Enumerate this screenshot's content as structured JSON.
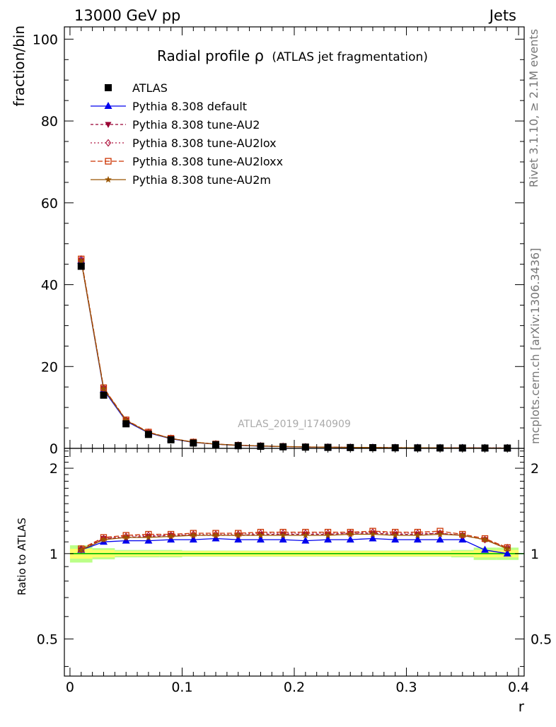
{
  "header": {
    "left": "13000 GeV pp",
    "right": "Jets"
  },
  "side_labels": {
    "rivet": "Rivet 3.1.10, ≥ 2.1M events",
    "source": "mcplots.cern.ch [arXiv:1306.3436]"
  },
  "watermark": "ATLAS_2019_I1740909",
  "colors": {
    "data": "#000000",
    "default": "#0000ee",
    "au2": "#990033",
    "au2lox": "#b01840",
    "au2loxx": "#cc3300",
    "au2m": "#995500",
    "band_inner": "#ffff66",
    "band_outer": "#bbff88",
    "ref_line": "#00bb00"
  },
  "chart_data": {
    "type": "line",
    "title": "Radial profile",
    "title_symbol": "ρ",
    "title_suffix": "(ATLAS jet fragmentation)",
    "xlabel": "r",
    "ylabel_main": "fraction/bin",
    "ylabel_ratio": "Ratio to ATLAS",
    "xlim": [
      -0.005,
      0.405
    ],
    "ylim_main": [
      0,
      103
    ],
    "ylim_ratio_log": [
      0.37,
      2.35
    ],
    "x_ticks": [
      0,
      0.1,
      0.2,
      0.3,
      0.4
    ],
    "x_tick_labels": [
      "0",
      "0.1",
      "0.2",
      "0.3",
      "0.4"
    ],
    "y_ticks_main": [
      0,
      20,
      40,
      60,
      80,
      100
    ],
    "y_tick_labels_main": [
      "0",
      "20",
      "40",
      "60",
      "80",
      "100"
    ],
    "y_ticks_ratio": [
      0.5,
      1,
      2
    ],
    "y_tick_labels_ratio": [
      "0.5",
      "1",
      "2"
    ],
    "x": [
      0.01,
      0.03,
      0.05,
      0.07,
      0.09,
      0.11,
      0.13,
      0.15,
      0.17,
      0.19,
      0.21,
      0.23,
      0.25,
      0.27,
      0.29,
      0.31,
      0.33,
      0.35,
      0.37,
      0.39
    ],
    "data": {
      "name": "ATLAS",
      "values": [
        44.5,
        13.0,
        6.0,
        3.4,
        2.1,
        1.3,
        0.9,
        0.65,
        0.5,
        0.38,
        0.3,
        0.24,
        0.2,
        0.17,
        0.14,
        0.12,
        0.1,
        0.09,
        0.08,
        0.07
      ],
      "band_inner": [
        0.04,
        0.03,
        0.02,
        0.02,
        0.02,
        0.02,
        0.02,
        0.02,
        0.02,
        0.02,
        0.02,
        0.02,
        0.02,
        0.02,
        0.02,
        0.02,
        0.02,
        0.02,
        0.03,
        0.03
      ],
      "band_outer": [
        0.07,
        0.045,
        0.03,
        0.03,
        0.03,
        0.025,
        0.025,
        0.025,
        0.025,
        0.025,
        0.025,
        0.025,
        0.025,
        0.025,
        0.025,
        0.025,
        0.025,
        0.03,
        0.05,
        0.05
      ]
    },
    "series": [
      {
        "name": "Pythia 8.308 default",
        "key": "default",
        "marker": "triangle-up",
        "dash": "",
        "ratio": [
          1.03,
          1.1,
          1.11,
          1.11,
          1.12,
          1.12,
          1.13,
          1.12,
          1.12,
          1.12,
          1.11,
          1.12,
          1.12,
          1.13,
          1.12,
          1.12,
          1.12,
          1.12,
          1.03,
          1.0
        ]
      },
      {
        "name": "Pythia 8.308 tune-AU2",
        "key": "au2",
        "marker": "triangle-down",
        "dash": "4,3",
        "ratio": [
          1.03,
          1.13,
          1.14,
          1.15,
          1.16,
          1.16,
          1.16,
          1.16,
          1.17,
          1.17,
          1.17,
          1.17,
          1.18,
          1.18,
          1.17,
          1.17,
          1.18,
          1.16,
          1.12,
          1.04
        ]
      },
      {
        "name": "Pythia 8.308 tune-AU2lox",
        "key": "au2lox",
        "marker": "diamond-open",
        "dash": "2,3",
        "ratio": [
          1.04,
          1.13,
          1.15,
          1.16,
          1.16,
          1.17,
          1.17,
          1.17,
          1.18,
          1.18,
          1.18,
          1.18,
          1.18,
          1.19,
          1.18,
          1.18,
          1.18,
          1.16,
          1.12,
          1.05
        ]
      },
      {
        "name": "Pythia 8.308 tune-AU2loxx",
        "key": "au2loxx",
        "marker": "square-open",
        "dash": "7,3",
        "ratio": [
          1.04,
          1.14,
          1.16,
          1.17,
          1.17,
          1.18,
          1.18,
          1.18,
          1.19,
          1.19,
          1.19,
          1.19,
          1.19,
          1.2,
          1.19,
          1.19,
          1.2,
          1.17,
          1.13,
          1.05
        ]
      },
      {
        "name": "Pythia 8.308 tune-AU2m",
        "key": "au2m",
        "marker": "star",
        "dash": "",
        "ratio": [
          1.03,
          1.12,
          1.14,
          1.14,
          1.15,
          1.16,
          1.16,
          1.16,
          1.16,
          1.16,
          1.16,
          1.16,
          1.17,
          1.17,
          1.16,
          1.16,
          1.17,
          1.16,
          1.12,
          1.04
        ]
      }
    ]
  }
}
